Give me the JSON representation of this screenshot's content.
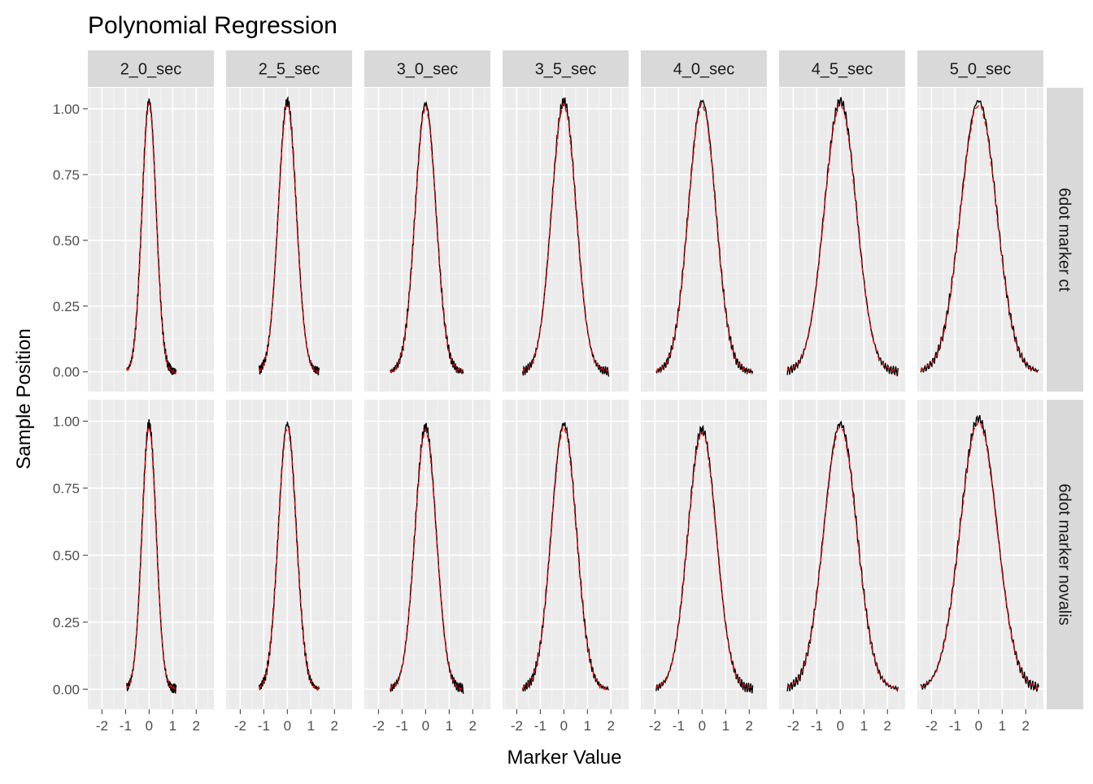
{
  "chart_data": {
    "type": "line",
    "title": "Polynomial Regression",
    "xlabel": "Marker Value",
    "ylabel": "Sample Position",
    "xlim": [
      -2.6,
      2.75
    ],
    "ylim": [
      -0.075,
      1.08
    ],
    "xticks": [
      -2,
      -1,
      0,
      1,
      2
    ],
    "xtick_labels": [
      "-2",
      "-1",
      "0",
      "1",
      "2"
    ],
    "yticks": [
      0.0,
      0.25,
      0.5,
      0.75,
      1.0
    ],
    "ytick_labels": [
      "0.00",
      "0.25",
      "0.50",
      "0.75",
      "1.00"
    ],
    "grid": true,
    "legend": "none",
    "columns": [
      "2_0_sec",
      "2_5_sec",
      "3_0_sec",
      "3_5_sec",
      "4_0_sec",
      "4_5_sec",
      "5_0_sec"
    ],
    "rows": [
      "6dot marker ct",
      "6dot marker novalis"
    ],
    "series_styles": [
      {
        "role": "observed",
        "color": "#000000",
        "dash": "solid"
      },
      {
        "role": "polynomial fit",
        "color": "#ff0000",
        "dash": "dashed"
      }
    ],
    "panels": [
      {
        "row": "6dot marker ct",
        "col": "2_0_sec",
        "x_range": [
          -0.95,
          1.15
        ],
        "peak": 1.03,
        "sigma": 0.3
      },
      {
        "row": "6dot marker ct",
        "col": "2_5_sec",
        "x_range": [
          -1.2,
          1.35
        ],
        "peak": 1.03,
        "sigma": 0.38
      },
      {
        "row": "6dot marker ct",
        "col": "3_0_sec",
        "x_range": [
          -1.5,
          1.6
        ],
        "peak": 1.02,
        "sigma": 0.44
      },
      {
        "row": "6dot marker ct",
        "col": "3_5_sec",
        "x_range": [
          -1.75,
          1.9
        ],
        "peak": 1.03,
        "sigma": 0.52
      },
      {
        "row": "6dot marker ct",
        "col": "4_0_sec",
        "x_range": [
          -1.95,
          2.15
        ],
        "peak": 1.03,
        "sigma": 0.58
      },
      {
        "row": "6dot marker ct",
        "col": "4_5_sec",
        "x_range": [
          -2.25,
          2.45
        ],
        "peak": 1.03,
        "sigma": 0.68
      },
      {
        "row": "6dot marker ct",
        "col": "5_0_sec",
        "x_range": [
          -2.45,
          2.55
        ],
        "peak": 1.03,
        "sigma": 0.76
      },
      {
        "row": "6dot marker novalis",
        "col": "2_0_sec",
        "x_range": [
          -0.95,
          1.15
        ],
        "peak": 0.99,
        "sigma": 0.3
      },
      {
        "row": "6dot marker novalis",
        "col": "2_5_sec",
        "x_range": [
          -1.2,
          1.35
        ],
        "peak": 0.99,
        "sigma": 0.38
      },
      {
        "row": "6dot marker novalis",
        "col": "3_0_sec",
        "x_range": [
          -1.5,
          1.6
        ],
        "peak": 0.98,
        "sigma": 0.45
      },
      {
        "row": "6dot marker novalis",
        "col": "3_5_sec",
        "x_range": [
          -1.75,
          1.9
        ],
        "peak": 0.99,
        "sigma": 0.53
      },
      {
        "row": "6dot marker novalis",
        "col": "4_0_sec",
        "x_range": [
          -1.95,
          2.15
        ],
        "peak": 0.97,
        "sigma": 0.6
      },
      {
        "row": "6dot marker novalis",
        "col": "4_5_sec",
        "x_range": [
          -2.25,
          2.45
        ],
        "peak": 0.99,
        "sigma": 0.7
      },
      {
        "row": "6dot marker novalis",
        "col": "5_0_sec",
        "x_range": [
          -2.45,
          2.55
        ],
        "peak": 1.01,
        "sigma": 0.78
      }
    ]
  }
}
